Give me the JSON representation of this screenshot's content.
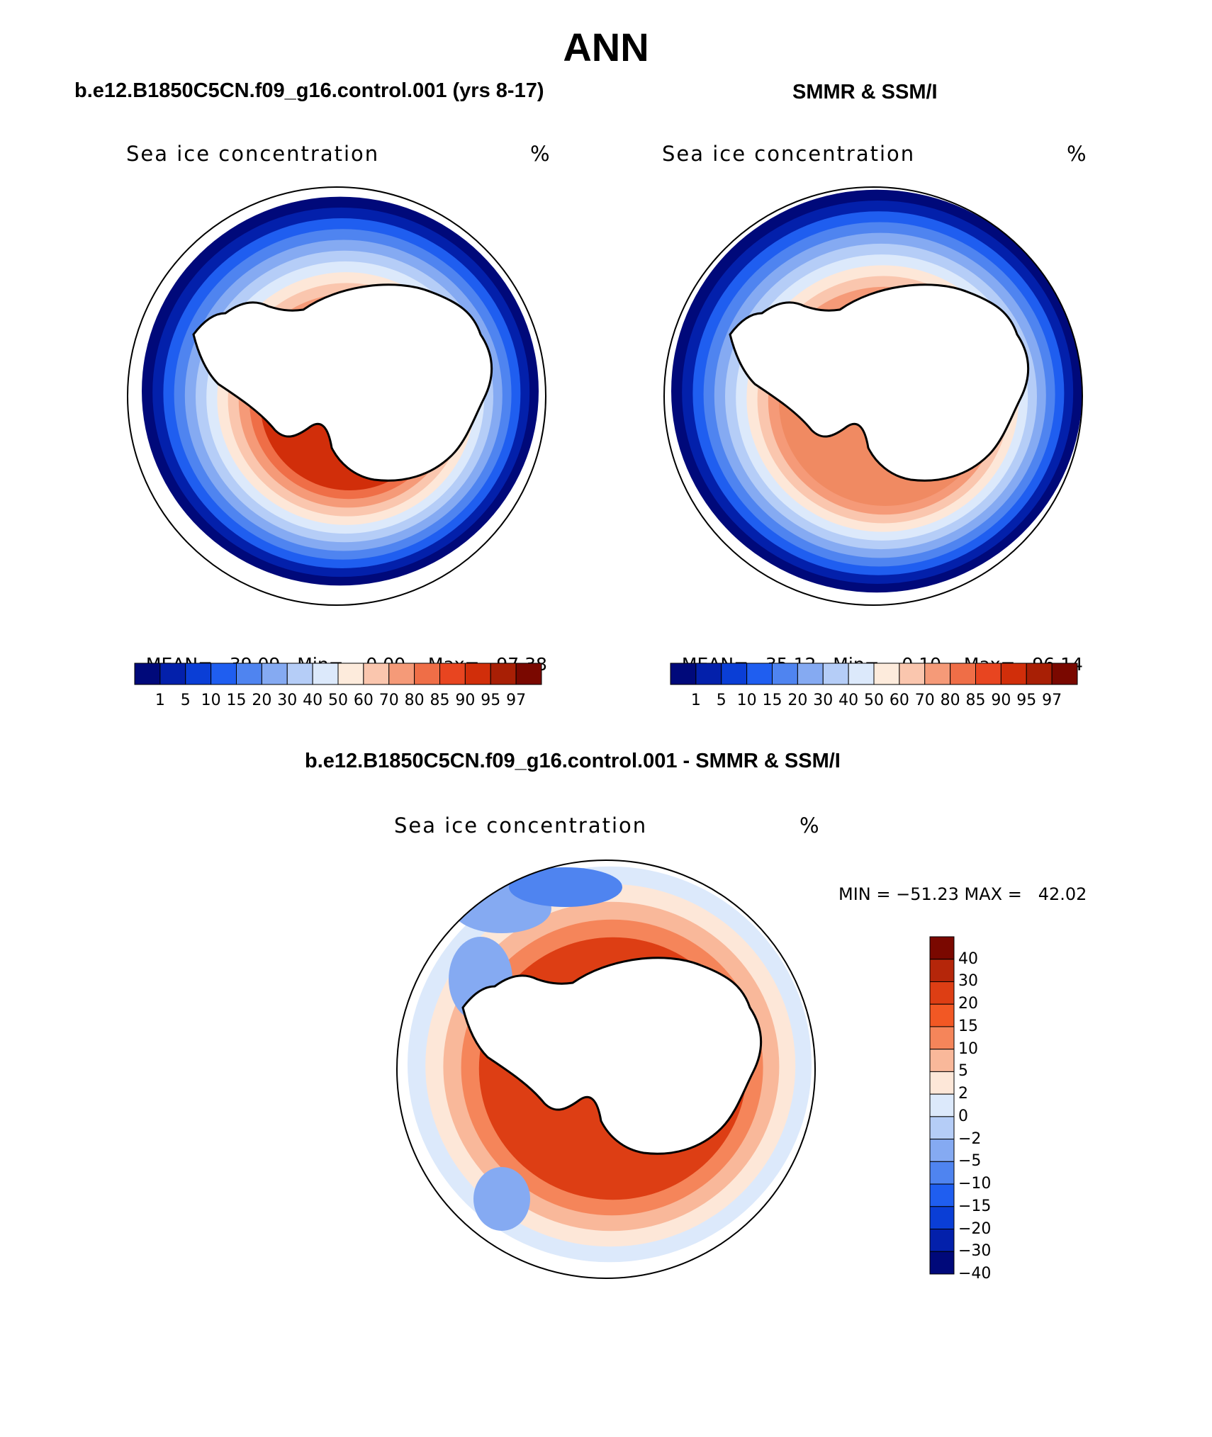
{
  "figure_title": "ANN",
  "panels": [
    {
      "title": "b.e12.B1850C5CN.f09_g16.control.001 (yrs 8-17)",
      "field_label": "Sea ice concentration",
      "units": "%",
      "stats": {
        "mean_label": "MEAN=",
        "mean": "39.09",
        "min_label": "Min=",
        "min": "0.00",
        "max_label": "Max=",
        "max": "97.38"
      }
    },
    {
      "title": "SMMR & SSM/I",
      "field_label": "Sea ice concentration",
      "units": "%",
      "stats": {
        "mean_label": "MEAN=",
        "mean": "35.12",
        "min_label": "Min=",
        "min": "0.10",
        "max_label": "Max=",
        "max": "96.14"
      }
    }
  ],
  "difference_panel": {
    "title": "b.e12.B1850C5CN.f09_g16.control.001 - SMMR & SSM/I",
    "field_label": "Sea ice concentration",
    "units": "%",
    "minmax_text": "MIN = −51.23 MAX =   42.02"
  },
  "colorbar_levels": [
    "1",
    "5",
    "10",
    "15",
    "20",
    "30",
    "40",
    "50",
    "60",
    "70",
    "80",
    "85",
    "90",
    "95",
    "97"
  ],
  "colorbar_colors": [
    "#00097a",
    "#0320ab",
    "#0a3ed6",
    "#1f5ef0",
    "#4f84f0",
    "#85aaf2",
    "#b5cdf7",
    "#dce9fb",
    "#fdebdc",
    "#fac6ae",
    "#f59a78",
    "#ef6e47",
    "#e84520",
    "#d12e0a",
    "#a81f05",
    "#7a0800"
  ],
  "diff_colorbar_levels": [
    "40",
    "30",
    "20",
    "15",
    "10",
    "5",
    "2",
    "0",
    "−2",
    "−5",
    "−10",
    "−15",
    "−20",
    "−30",
    "−40"
  ],
  "diff_colorbar_colors": [
    "#7a0800",
    "#b5260a",
    "#dd3e14",
    "#f25824",
    "#f5855a",
    "#f9b89a",
    "#fde7d8",
    "#dce9fb",
    "#b5cdf7",
    "#85aaf2",
    "#4f84f0",
    "#1f5ef0",
    "#0a3ed6",
    "#0320ab",
    "#00097a"
  ],
  "map_style": {
    "panel1": {
      "ice_bands": [
        "#00097a",
        "#0320ab",
        "#1f5ef0",
        "#4f84f0",
        "#85aaf2",
        "#b5cdf7",
        "#dce9fb",
        "#fde7d8",
        "#fac6ae",
        "#f59a78",
        "#ef6e47",
        "#d12e0a"
      ],
      "outer_gap": "white"
    },
    "panel2": {
      "ice_bands": [
        "#00097a",
        "#0320ab",
        "#1f5ef0",
        "#4f84f0",
        "#85aaf2",
        "#b5cdf7",
        "#dce9fb",
        "#fde7d8",
        "#fac6ae",
        "#f59a78",
        "#f08a62"
      ]
    },
    "diff": {
      "ring_colors": [
        "#dce9fb",
        "#fde7d8",
        "#f9b89a",
        "#f5855a",
        "#dd3e14"
      ]
    }
  }
}
